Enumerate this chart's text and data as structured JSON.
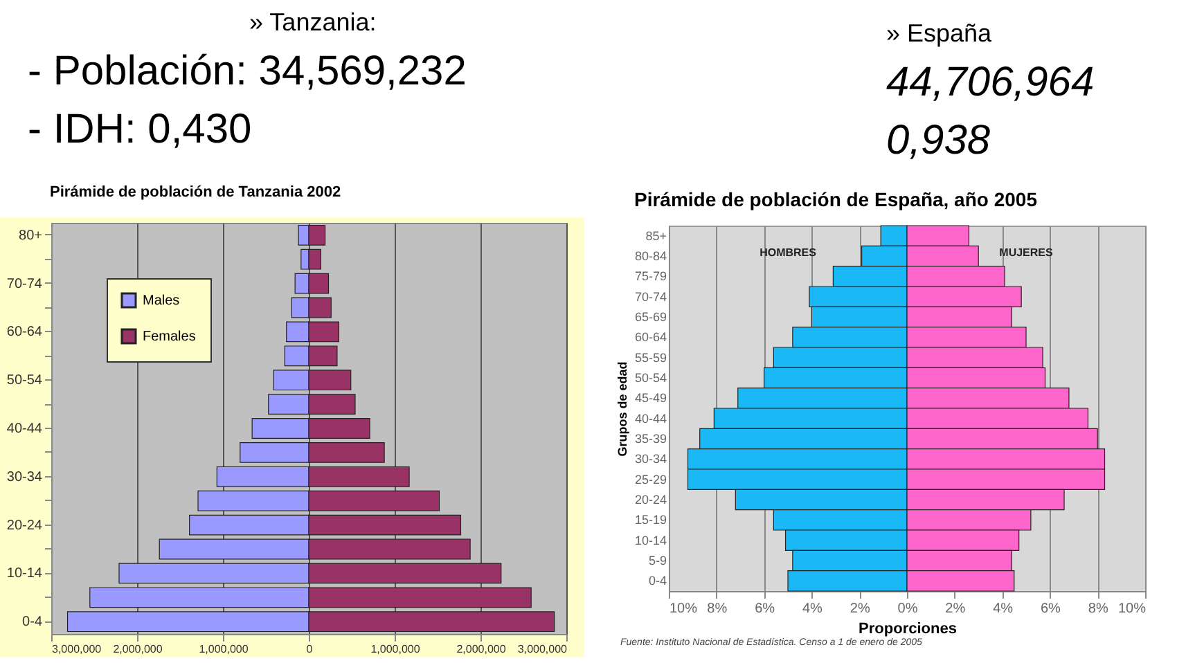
{
  "chart_data": [
    {
      "type": "other",
      "title": "» Tanzania:",
      "annotations": [
        "- Población: 34,569,232",
        "- IDH: 0,430"
      ]
    },
    {
      "type": "other",
      "title": "» España",
      "annotations": [
        "44,706,964",
        "0,938"
      ]
    },
    {
      "type": "bar",
      "title": "Pirámide de población de Tanzania 2002",
      "orientation": "horizontal",
      "categories": [
        "80+",
        null,
        "70-74",
        null,
        "60-64",
        null,
        "50-54",
        null,
        "40-44",
        null,
        "30-34",
        null,
        "20-24",
        null,
        "10-14",
        null,
        "0-4"
      ],
      "series": [
        {
          "name": "Males",
          "color": "#9999ff",
          "values": [
            -120000,
            -90000,
            -160000,
            -200000,
            -260000,
            -280000,
            -410000,
            -470000,
            -660000,
            -800000,
            -1070000,
            -1290000,
            -1390000,
            -1740000,
            -2210000,
            -2550000,
            -2810000
          ]
        },
        {
          "name": "Females",
          "color": "#993366",
          "values": [
            190000,
            140000,
            230000,
            260000,
            350000,
            330000,
            490000,
            540000,
            710000,
            880000,
            1170000,
            1520000,
            1770000,
            1880000,
            2240000,
            2590000,
            2860000
          ]
        }
      ],
      "xlim": [
        -3000000,
        3000000
      ],
      "xticks": [
        {
          "value": -3000000,
          "label": "3,000,000"
        },
        {
          "value": -2000000,
          "label": "2,000,000"
        },
        {
          "value": -1000000,
          "label": "1,000,000"
        },
        0,
        {
          "value": 1000000,
          "label": "1,000,000"
        },
        {
          "value": 2000000,
          "label": "2,000,000"
        },
        {
          "value": 3000000,
          "label": "3,000,000"
        }
      ],
      "grid": "x",
      "legend": "top left",
      "stacked": true
    },
    {
      "type": "bar",
      "title": "Pirámide de población de España, año 2005",
      "orientation": "horizontal",
      "xlabel": "Proporciones",
      "ylabel": "Grupos de edad",
      "categories": [
        "85+",
        "80-84",
        "75-79",
        "70-74",
        "65-69",
        "60-64",
        "55-59",
        "50-54",
        "45-49",
        "40-44",
        "35-39",
        "30-34",
        "25-29",
        "20-24",
        "15-19",
        "10-14",
        "5-9",
        "0-4"
      ],
      "series": [
        {
          "name": "HOMBRES",
          "color": "#1ab8f5",
          "values": [
            -1.1,
            -1.9,
            -3.1,
            -4.1,
            -4.0,
            -4.8,
            -5.6,
            -6.0,
            -7.1,
            -8.1,
            -8.7,
            -9.2,
            -9.2,
            -7.2,
            -5.6,
            -5.1,
            -4.8,
            -5.0
          ]
        },
        {
          "name": "MUJERES",
          "color": "#ff66cc",
          "values": [
            2.6,
            3.0,
            4.1,
            4.8,
            4.4,
            5.0,
            5.7,
            5.8,
            6.8,
            7.6,
            8.0,
            8.3,
            8.3,
            6.6,
            5.2,
            4.7,
            4.4,
            4.5
          ]
        }
      ],
      "xlim": [
        -10,
        10
      ],
      "xticks": [
        {
          "value": -10,
          "label": "10%"
        },
        {
          "value": -8,
          "label": "8%"
        },
        {
          "value": -6,
          "label": "6%"
        },
        {
          "value": -4,
          "label": "4%"
        },
        {
          "value": -2,
          "label": "2%"
        },
        {
          "value": 0,
          "label": "0%"
        },
        {
          "value": 2,
          "label": "2%"
        },
        {
          "value": 4,
          "label": "4%"
        },
        {
          "value": 6,
          "label": "6%"
        },
        {
          "value": 8,
          "label": "8%"
        },
        {
          "value": 10,
          "label": "10%"
        }
      ],
      "grid": "x",
      "legend": false,
      "stacked": true,
      "annotations": [
        "Fuente: Instituto Nacional de Estadística. Censo a 1 de enero de 2005"
      ]
    }
  ]
}
